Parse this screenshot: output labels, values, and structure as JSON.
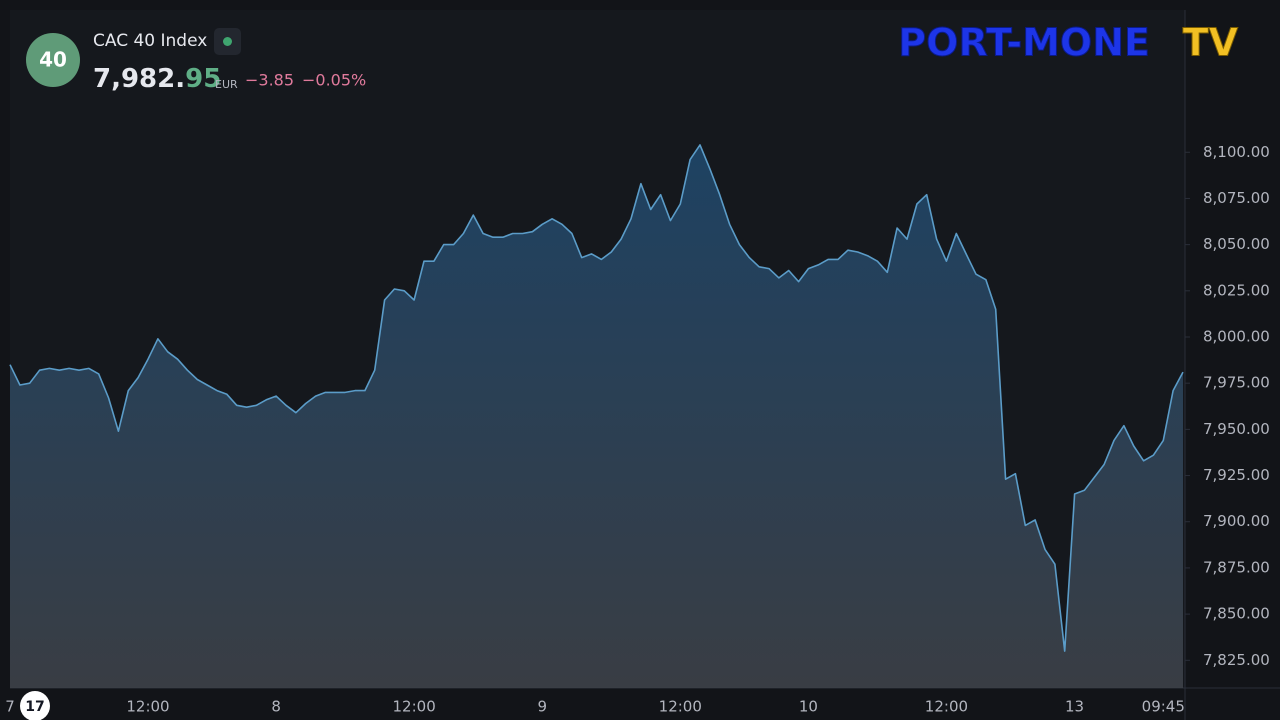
{
  "header": {
    "badge": "40",
    "name": "CAC 40 Index",
    "price_int": "7,982.",
    "price_dec": "95",
    "currency": "EUR",
    "change": "−3.85",
    "change_pct": "−0.05%"
  },
  "logo": {
    "left": "PORT-MONE",
    "right": "TV"
  },
  "chart_data": {
    "type": "area",
    "color": "#5b9cc8",
    "grid": false,
    "categories": [
      "7",
      null,
      null,
      null,
      null,
      null,
      null,
      null,
      null,
      null,
      null,
      null,
      null,
      null,
      "12:00",
      null,
      null,
      null,
      null,
      null,
      null,
      null,
      null,
      null,
      null,
      null,
      null,
      "8",
      null,
      null,
      null,
      null,
      null,
      null,
      null,
      null,
      null,
      null,
      null,
      null,
      null,
      "12:00",
      null,
      null,
      null,
      null,
      null,
      null,
      null,
      null,
      null,
      null,
      null,
      null,
      "9",
      null,
      null,
      null,
      null,
      null,
      null,
      null,
      null,
      null,
      null,
      null,
      null,
      null,
      "12:00",
      null,
      null,
      null,
      null,
      null,
      null,
      null,
      null,
      null,
      null,
      null,
      null,
      "10",
      null,
      null,
      null,
      null,
      null,
      null,
      null,
      null,
      null,
      null,
      null,
      null,
      null,
      "12:00",
      null,
      null,
      null,
      null,
      null,
      null,
      null,
      null,
      null,
      null,
      null,
      null,
      "13",
      null,
      null,
      null,
      null,
      null,
      null,
      null,
      null,
      "09:45",
      null,
      null
    ],
    "values": [
      7985,
      7974,
      7975,
      7982,
      7983,
      7982,
      7983,
      7982,
      7983,
      7980,
      7967,
      7949,
      7971,
      7978,
      7988,
      7999,
      7992,
      7988,
      7982,
      7977,
      7974,
      7971,
      7969,
      7963,
      7962,
      7963,
      7966,
      7968,
      7963,
      7959,
      7964,
      7968,
      7970,
      7970,
      7970,
      7971,
      7971,
      7982,
      8020,
      8026,
      8025,
      8020,
      8041,
      8041,
      8050,
      8050,
      8056,
      8066,
      8056,
      8054,
      8054,
      8056,
      8056,
      8057,
      8061,
      8064,
      8061,
      8056,
      8043,
      8045,
      8042,
      8046,
      8053,
      8064,
      8083,
      8069,
      8077,
      8063,
      8072,
      8096,
      8104,
      8091,
      8077,
      8061,
      8050,
      8043,
      8038,
      8037,
      8032,
      8036,
      8030,
      8037,
      8039,
      8042,
      8042,
      8047,
      8046,
      8044,
      8041,
      8035,
      8059,
      8053,
      8072,
      8077,
      8053,
      8041,
      8056,
      8045,
      8034,
      8031,
      8015,
      7923,
      7926,
      7898,
      7901,
      7885,
      7877,
      7830,
      7915,
      7917,
      7924,
      7931,
      7944,
      7952,
      7941,
      7933,
      7936,
      7944,
      7971,
      7981
    ],
    "ylim": [
      7810,
      8177
    ],
    "yticks": [
      {
        "value": 7825,
        "label": "7,825.00"
      },
      {
        "value": 7850,
        "label": "7,850.00"
      },
      {
        "value": 7875,
        "label": "7,875.00"
      },
      {
        "value": 7900,
        "label": "7,900.00"
      },
      {
        "value": 7925,
        "label": "7,925.00"
      },
      {
        "value": 7950,
        "label": "7,950.00"
      },
      {
        "value": 7975,
        "label": "7,975.00"
      },
      {
        "value": 8000,
        "label": "8,000.00"
      },
      {
        "value": 8025,
        "label": "8,025.00"
      },
      {
        "value": 8050,
        "label": "8,050.00"
      },
      {
        "value": 8075,
        "label": "8,075.00"
      },
      {
        "value": 8100,
        "label": "8,100.00"
      }
    ]
  }
}
